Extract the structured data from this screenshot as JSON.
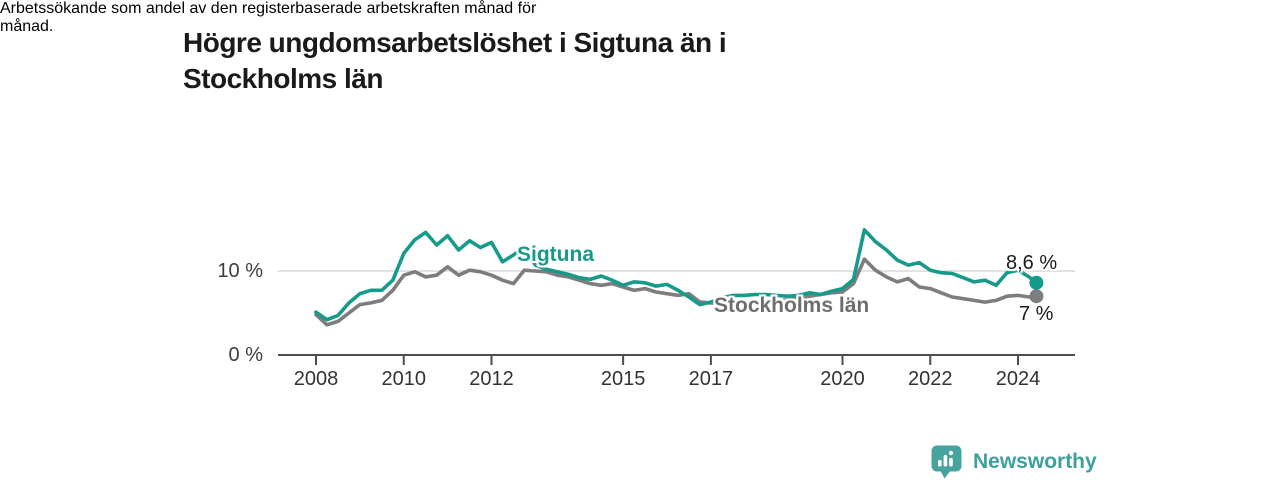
{
  "title": "Högre ungdomsarbetslöshet i Sigtuna än i Stockholms län",
  "title_lines": [
    "Högre ungdomsarbetslöshet i Sigtuna än i",
    "Stockholms län"
  ],
  "subtitle": "Arbetssökande som andel av den registerbaserade arbetskraften månad för månad.",
  "subtitle_lines": [
    "Arbetssökande som andel av den registerbaserade arbetskraften månad för",
    "månad."
  ],
  "branding": {
    "logo_text": "Newsworthy",
    "logo_icon": "bar-chart-speech-bubble-icon",
    "logo_color": "#46a39d"
  },
  "chart_data": {
    "type": "line",
    "title": "Högre ungdomsarbetslöshet i Sigtuna än i Stockholms län",
    "subtitle": "Arbetssökande som andel av den registerbaserade arbetskraften månad för månad.",
    "y_unit": "%",
    "xlim": [
      2007.1,
      2025.3
    ],
    "ylim": [
      0,
      16.1
    ],
    "grid": "horizontal gridline at 10 % only, baseline at 0 %",
    "legend_position": "inline labels on lines, end-value labels at right",
    "x_ticks": [
      2008,
      2010,
      2012,
      2015,
      2017,
      2020,
      2022,
      2024
    ],
    "x_tick_labels": [
      "2008",
      "2010",
      "2012",
      "2015",
      "2017",
      "2020",
      "2022",
      "2024"
    ],
    "y_ticks": [
      {
        "value": 0,
        "label": "0 %"
      },
      {
        "value": 10,
        "label": "10 %"
      }
    ],
    "x": [
      2008,
      2008.25,
      2008.5,
      2008.75,
      2009,
      2009.25,
      2009.5,
      2009.75,
      2010,
      2010.25,
      2010.5,
      2010.75,
      2011,
      2011.25,
      2011.5,
      2011.75,
      2012,
      2012.25,
      2012.5,
      2012.75,
      2013,
      2013.25,
      2013.5,
      2013.75,
      2014,
      2014.25,
      2014.5,
      2014.75,
      2015,
      2015.25,
      2015.5,
      2015.75,
      2016,
      2016.25,
      2016.5,
      2016.75,
      2017,
      2017.25,
      2017.5,
      2017.75,
      2018,
      2018.25,
      2018.5,
      2018.75,
      2019,
      2019.25,
      2019.5,
      2019.75,
      2020,
      2020.25,
      2020.5,
      2020.75,
      2021,
      2021.25,
      2021.5,
      2021.75,
      2022,
      2022.25,
      2022.5,
      2022.75,
      2023,
      2023.25,
      2023.5,
      2023.75,
      2024,
      2024.25,
      2024.42
    ],
    "series": [
      {
        "name": "Sigtuna",
        "color": "#169a8a",
        "end_label": "8,6 %",
        "end_value": 8.6,
        "values": [
          5.1,
          4.2,
          4.7,
          6.2,
          7.3,
          7.7,
          7.7,
          8.9,
          12.1,
          13.7,
          14.6,
          13.1,
          14.2,
          12.5,
          13.6,
          12.8,
          13.4,
          11.1,
          11.9,
          12.8,
          10.7,
          10.2,
          9.9,
          9.6,
          9.2,
          9.0,
          9.4,
          8.9,
          8.3,
          8.7,
          8.6,
          8.2,
          8.4,
          7.7,
          6.9,
          6.0,
          6.3,
          6.8,
          7.1,
          7.1,
          7.2,
          7.2,
          7.1,
          7.0,
          7.1,
          7.4,
          7.2,
          7.6,
          7.9,
          9.0,
          14.9,
          13.5,
          12.5,
          11.3,
          10.7,
          11.0,
          10.1,
          9.8,
          9.7,
          9.2,
          8.7,
          8.9,
          8.3,
          9.8,
          10.1,
          9.3,
          8.6
        ]
      },
      {
        "name": "Stockholms län",
        "color": "#7d7d7d",
        "end_label": "7 %",
        "end_value": 7.0,
        "values": [
          4.8,
          3.6,
          4.0,
          5.0,
          6.0,
          6.2,
          6.5,
          7.7,
          9.5,
          9.9,
          9.3,
          9.5,
          10.5,
          9.5,
          10.1,
          9.9,
          9.5,
          8.9,
          8.5,
          10.1,
          10.0,
          9.9,
          9.5,
          9.3,
          8.9,
          8.5,
          8.3,
          8.5,
          8.1,
          7.7,
          7.9,
          7.5,
          7.3,
          7.1,
          7.3,
          6.3,
          6.2,
          6.1,
          6.0,
          6.1,
          6.2,
          6.3,
          6.4,
          6.6,
          6.8,
          7.0,
          7.2,
          7.4,
          7.5,
          8.5,
          11.4,
          10.1,
          9.3,
          8.7,
          9.1,
          8.1,
          7.9,
          7.4,
          6.9,
          6.7,
          6.5,
          6.3,
          6.5,
          7.0,
          7.1,
          6.9,
          7.0
        ]
      }
    ]
  }
}
